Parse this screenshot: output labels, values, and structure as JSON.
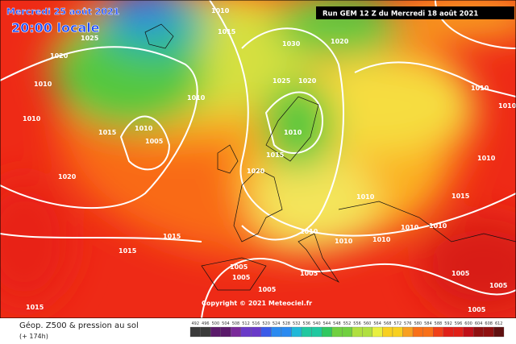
{
  "header": {
    "date": "Mercredi 25 août 2021",
    "time": "20:00 locale",
    "run": "Run GEM 12 Z du Mercredi 18 août 2021"
  },
  "footer": {
    "title": "Géop. Z500 & pression au sol",
    "lead": "(+ 174h)",
    "copyright": "Copyright © 2021 Meteociel.fr"
  },
  "isobar_labels": [
    "1010",
    "1015",
    "1025",
    "1020",
    "1010",
    "1010",
    "1015",
    "1010",
    "1005",
    "1020",
    "1015",
    "1015",
    "1010",
    "1025",
    "1020",
    "1030",
    "1020",
    "1010",
    "1015",
    "1020",
    "1010",
    "1010",
    "1010",
    "1010",
    "1010",
    "1010",
    "1010",
    "1010",
    "1010",
    "1015",
    "1005",
    "1005",
    "1005",
    "1005",
    "1005",
    "1005",
    "1005",
    "1015",
    "1010"
  ],
  "legend": {
    "ticks": [
      "492",
      "496",
      "500",
      "504",
      "508",
      "512",
      "516",
      "520",
      "524",
      "528",
      "532",
      "536",
      "540",
      "544",
      "548",
      "552",
      "556",
      "560",
      "564",
      "568",
      "572",
      "576",
      "580",
      "584",
      "588",
      "592",
      "596",
      "600",
      "604",
      "608",
      "612"
    ]
  }
}
